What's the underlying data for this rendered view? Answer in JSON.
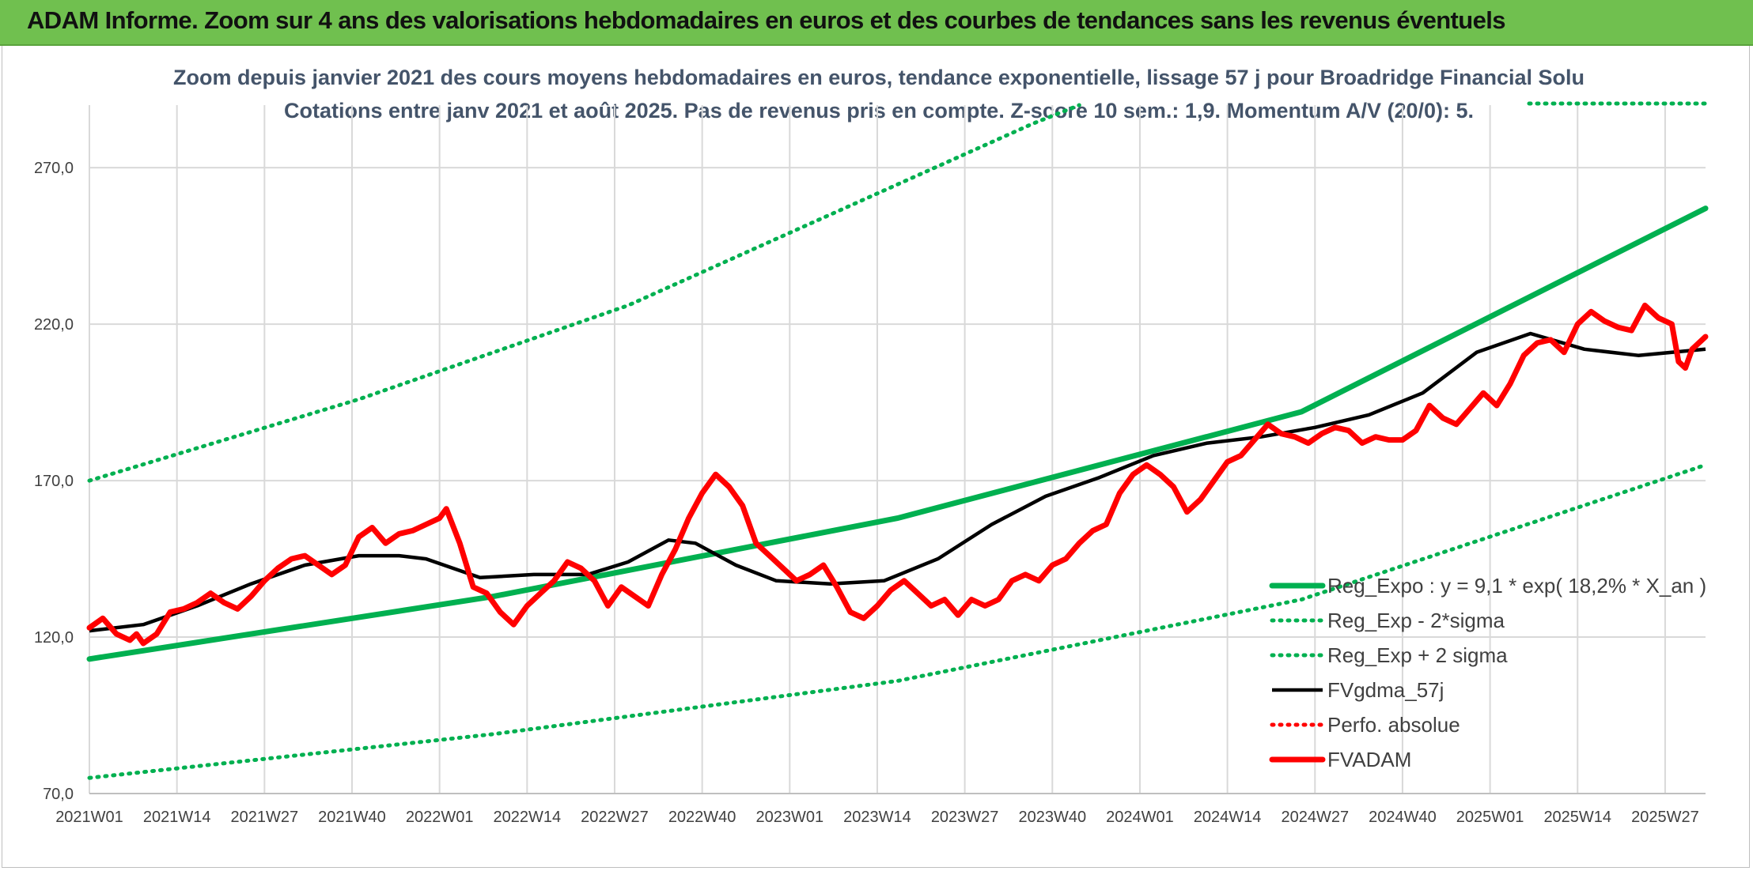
{
  "banner": {
    "title": "ADAM Informe. Zoom sur 4 ans des valorisations hebdomadaires en euros et des courbes de tendances sans les revenus éventuels"
  },
  "chart_data": {
    "type": "line",
    "subtitle_1": "Zoom depuis janvier 2021 des cours moyens hebdomadaires en euros, tendance exponentielle, lissage 57 j pour Broadridge Financial Solu",
    "subtitle_2": "Cotations entre janv 2021 et août 2025. Pas de revenus pris en compte. Z-score 10 sem.: 1,9. Momentum A/V (20/0): 5.",
    "ylim": [
      70,
      290
    ],
    "yticks": [
      70,
      120,
      170,
      220,
      270
    ],
    "ytick_labels": [
      "70,0",
      "120,0",
      "170,0",
      "220,0",
      "270,0"
    ],
    "grid": true,
    "legend_position": "bottom-right",
    "x_week_count": 240,
    "x_tick_labels": [
      "2021W01",
      "2021W14",
      "2021W27",
      "2021W40",
      "2022W01",
      "2022W14",
      "2022W27",
      "2022W40",
      "2023W01",
      "2023W14",
      "2023W27",
      "2023W40",
      "2024W01",
      "2024W14",
      "2024W27",
      "2024W40",
      "2025W01",
      "2025W14",
      "2025W27"
    ],
    "series": [
      {
        "name": "Reg_Expo : y = 9,1 * exp( 18,2% *  X_an )",
        "color": "#00b050",
        "style": "solid-thick",
        "points": [
          [
            0,
            113
          ],
          [
            60,
            133
          ],
          [
            120,
            158
          ],
          [
            180,
            192
          ],
          [
            240,
            257
          ]
        ]
      },
      {
        "name": "Reg_Exp - 2*sigma",
        "color": "#00b050",
        "style": "dotted",
        "points": [
          [
            0,
            75
          ],
          [
            60,
            89
          ],
          [
            120,
            106
          ],
          [
            180,
            132
          ],
          [
            240,
            175
          ]
        ]
      },
      {
        "name": "Reg_Exp + 2 sigma",
        "color": "#00b050",
        "style": "dotted",
        "points": [
          [
            0,
            170
          ],
          [
            40,
            196
          ],
          [
            80,
            226
          ],
          [
            110,
            255
          ],
          [
            140,
            284
          ],
          [
            147,
            290
          ]
        ]
      },
      {
        "name": "FVgdma_57j",
        "color": "#000000",
        "style": "solid",
        "points": [
          [
            0,
            122
          ],
          [
            8,
            124
          ],
          [
            16,
            130
          ],
          [
            24,
            137
          ],
          [
            32,
            143
          ],
          [
            40,
            146
          ],
          [
            46,
            146
          ],
          [
            50,
            145
          ],
          [
            58,
            139
          ],
          [
            66,
            140
          ],
          [
            74,
            140
          ],
          [
            80,
            144
          ],
          [
            86,
            151
          ],
          [
            90,
            150
          ],
          [
            96,
            143
          ],
          [
            102,
            138
          ],
          [
            110,
            137
          ],
          [
            118,
            138
          ],
          [
            126,
            145
          ],
          [
            134,
            156
          ],
          [
            142,
            165
          ],
          [
            150,
            171
          ],
          [
            158,
            178
          ],
          [
            166,
            182
          ],
          [
            174,
            184
          ],
          [
            182,
            187
          ],
          [
            190,
            191
          ],
          [
            198,
            198
          ],
          [
            206,
            211
          ],
          [
            214,
            217
          ],
          [
            222,
            212
          ],
          [
            230,
            210
          ],
          [
            240,
            212
          ]
        ]
      },
      {
        "name": "Perfo. absolue",
        "color": "#ff0000",
        "style": "dotted",
        "points": []
      },
      {
        "name": "FVADAM",
        "color": "#ff0000",
        "style": "solid-thick",
        "points": [
          [
            0,
            123
          ],
          [
            2,
            126
          ],
          [
            4,
            121
          ],
          [
            6,
            119
          ],
          [
            7,
            121
          ],
          [
            8,
            118
          ],
          [
            10,
            121
          ],
          [
            12,
            128
          ],
          [
            14,
            129
          ],
          [
            16,
            131
          ],
          [
            18,
            134
          ],
          [
            20,
            131
          ],
          [
            22,
            129
          ],
          [
            24,
            133
          ],
          [
            26,
            138
          ],
          [
            28,
            142
          ],
          [
            30,
            145
          ],
          [
            32,
            146
          ],
          [
            34,
            143
          ],
          [
            36,
            140
          ],
          [
            38,
            143
          ],
          [
            40,
            152
          ],
          [
            42,
            155
          ],
          [
            44,
            150
          ],
          [
            46,
            153
          ],
          [
            48,
            154
          ],
          [
            50,
            156
          ],
          [
            52,
            158
          ],
          [
            53,
            161
          ],
          [
            55,
            150
          ],
          [
            57,
            136
          ],
          [
            59,
            134
          ],
          [
            61,
            128
          ],
          [
            63,
            124
          ],
          [
            65,
            130
          ],
          [
            67,
            134
          ],
          [
            69,
            138
          ],
          [
            71,
            144
          ],
          [
            73,
            142
          ],
          [
            75,
            138
          ],
          [
            77,
            130
          ],
          [
            79,
            136
          ],
          [
            81,
            133
          ],
          [
            83,
            130
          ],
          [
            85,
            140
          ],
          [
            87,
            148
          ],
          [
            89,
            158
          ],
          [
            91,
            166
          ],
          [
            93,
            172
          ],
          [
            95,
            168
          ],
          [
            97,
            162
          ],
          [
            99,
            150
          ],
          [
            101,
            146
          ],
          [
            103,
            142
          ],
          [
            105,
            138
          ],
          [
            107,
            140
          ],
          [
            109,
            143
          ],
          [
            111,
            136
          ],
          [
            113,
            128
          ],
          [
            115,
            126
          ],
          [
            117,
            130
          ],
          [
            119,
            135
          ],
          [
            121,
            138
          ],
          [
            123,
            134
          ],
          [
            125,
            130
          ],
          [
            127,
            132
          ],
          [
            129,
            127
          ],
          [
            131,
            132
          ],
          [
            133,
            130
          ],
          [
            135,
            132
          ],
          [
            137,
            138
          ],
          [
            139,
            140
          ],
          [
            141,
            138
          ],
          [
            143,
            143
          ],
          [
            145,
            145
          ],
          [
            147,
            150
          ],
          [
            149,
            154
          ],
          [
            151,
            156
          ],
          [
            153,
            166
          ],
          [
            155,
            172
          ],
          [
            157,
            175
          ],
          [
            159,
            172
          ],
          [
            161,
            168
          ],
          [
            163,
            160
          ],
          [
            165,
            164
          ],
          [
            167,
            170
          ],
          [
            169,
            176
          ],
          [
            171,
            178
          ],
          [
            173,
            183
          ],
          [
            175,
            188
          ],
          [
            177,
            185
          ],
          [
            179,
            184
          ],
          [
            181,
            182
          ],
          [
            183,
            185
          ],
          [
            185,
            187
          ],
          [
            187,
            186
          ],
          [
            189,
            182
          ],
          [
            191,
            184
          ],
          [
            193,
            183
          ],
          [
            195,
            183
          ],
          [
            197,
            186
          ],
          [
            199,
            194
          ],
          [
            201,
            190
          ],
          [
            203,
            188
          ],
          [
            205,
            193
          ],
          [
            207,
            198
          ],
          [
            209,
            194
          ],
          [
            211,
            201
          ],
          [
            213,
            210
          ],
          [
            215,
            214
          ],
          [
            217,
            215
          ],
          [
            219,
            211
          ],
          [
            221,
            220
          ],
          [
            223,
            224
          ],
          [
            225,
            221
          ],
          [
            227,
            219
          ],
          [
            229,
            218
          ],
          [
            231,
            226
          ],
          [
            233,
            222
          ],
          [
            235,
            220
          ],
          [
            236,
            208
          ],
          [
            237,
            206
          ],
          [
            238,
            212
          ],
          [
            240,
            216
          ]
        ]
      }
    ]
  }
}
